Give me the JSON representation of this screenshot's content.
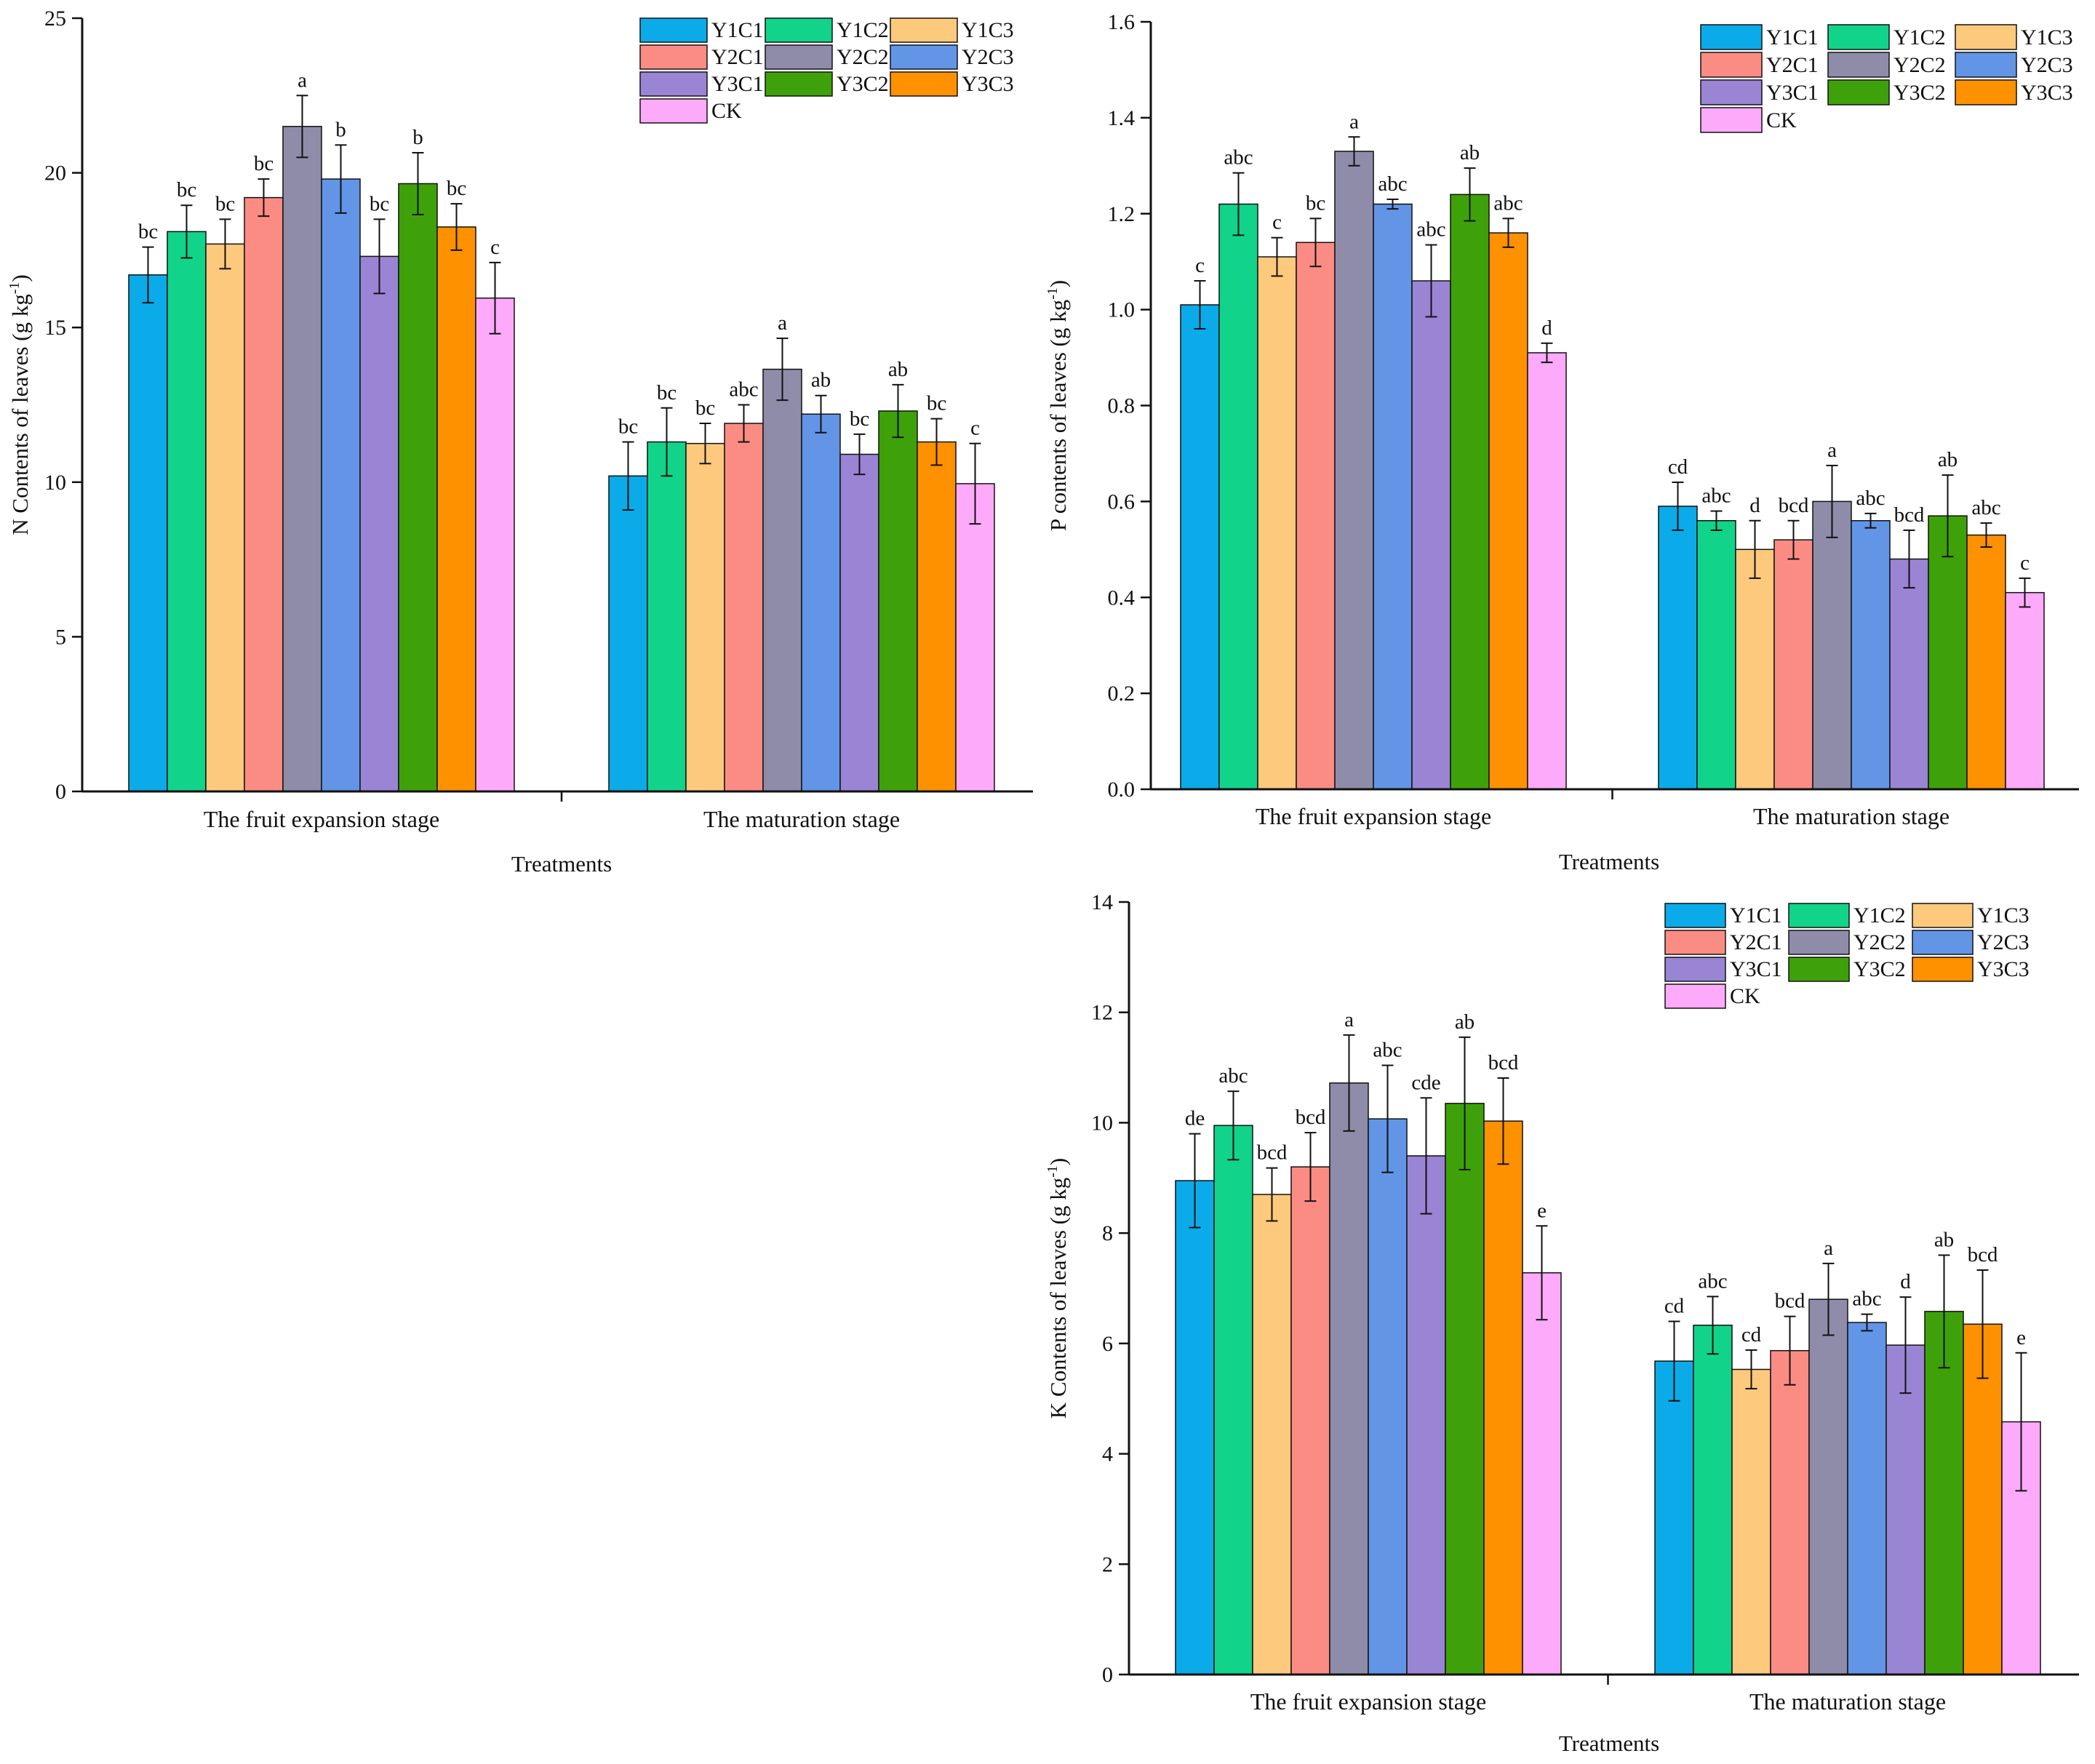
{
  "chart_data": [
    {
      "type": "bar",
      "id": "n",
      "ylabel_main": "N Contents of leaves (g kg",
      "ylabel_sup": "-1",
      "ylabel_tail": ")",
      "xlabel": "Treatments",
      "ylim": [
        0,
        25
      ],
      "yticks": [
        0,
        5,
        10,
        15,
        20,
        25
      ],
      "ytick_labels": [
        "0",
        "5",
        "10",
        "15",
        "20",
        "25"
      ],
      "categories": [
        "The fruit expansion stage",
        "The maturation stage"
      ],
      "series": [
        {
          "name": "Y1C1",
          "color": "#0aabe8",
          "values": [
            16.7,
            10.2
          ],
          "errors": [
            0.9,
            1.1
          ],
          "labels": [
            "bc",
            "bc"
          ]
        },
        {
          "name": "Y1C2",
          "color": "#12d38a",
          "values": [
            18.1,
            11.3
          ],
          "errors": [
            0.85,
            1.1
          ],
          "labels": [
            "bc",
            "bc"
          ]
        },
        {
          "name": "Y1C3",
          "color": "#fdc97c",
          "values": [
            17.7,
            11.25
          ],
          "errors": [
            0.8,
            0.65
          ],
          "labels": [
            "bc",
            "bc"
          ]
        },
        {
          "name": "Y2C1",
          "color": "#fb8c84",
          "values": [
            19.2,
            11.9
          ],
          "errors": [
            0.6,
            0.6
          ],
          "labels": [
            "bc",
            "abc"
          ]
        },
        {
          "name": "Y2C2",
          "color": "#8e8ca9",
          "values": [
            21.5,
            13.65
          ],
          "errors": [
            1.0,
            1.0
          ],
          "labels": [
            "a",
            "a"
          ]
        },
        {
          "name": "Y2C3",
          "color": "#6295e6",
          "values": [
            19.8,
            12.2
          ],
          "errors": [
            1.1,
            0.6
          ],
          "labels": [
            "b",
            "ab"
          ]
        },
        {
          "name": "Y3C1",
          "color": "#9a84d4",
          "values": [
            17.3,
            10.9
          ],
          "errors": [
            1.2,
            0.65
          ],
          "labels": [
            "bc",
            "bc"
          ]
        },
        {
          "name": "Y3C2",
          "color": "#3ea10a",
          "values": [
            19.65,
            12.3
          ],
          "errors": [
            1.0,
            0.85
          ],
          "labels": [
            "b",
            "ab"
          ]
        },
        {
          "name": "Y3C3",
          "color": "#fd9100",
          "values": [
            18.25,
            11.3
          ],
          "errors": [
            0.75,
            0.75
          ],
          "labels": [
            "bc",
            "bc"
          ]
        },
        {
          "name": "CK",
          "color": "#fdaafb",
          "values": [
            15.95,
            9.95
          ],
          "errors": [
            1.15,
            1.3
          ],
          "labels": [
            "c",
            "c"
          ]
        }
      ]
    },
    {
      "type": "bar",
      "id": "p",
      "ylabel_main": "P contents of leaves (g kg",
      "ylabel_sup": "-1",
      "ylabel_tail": ")",
      "xlabel": "Treatments",
      "ylim": [
        0,
        1.6
      ],
      "yticks": [
        0,
        0.2,
        0.4,
        0.6,
        0.8,
        1.0,
        1.2,
        1.4,
        1.6
      ],
      "ytick_labels": [
        "0.0",
        "0.2",
        "0.4",
        "0.6",
        "0.8",
        "1.0",
        "1.2",
        "1.4",
        "1.6"
      ],
      "categories": [
        "The fruit expansion stage",
        "The maturation stage"
      ],
      "series": [
        {
          "name": "Y1C1",
          "color": "#0aabe8",
          "values": [
            1.01,
            0.59
          ],
          "errors": [
            0.05,
            0.05
          ],
          "labels": [
            "c",
            "cd"
          ]
        },
        {
          "name": "Y1C2",
          "color": "#12d38a",
          "values": [
            1.22,
            0.56
          ],
          "errors": [
            0.065,
            0.02
          ],
          "labels": [
            "abc",
            "abc"
          ]
        },
        {
          "name": "Y1C3",
          "color": "#fdc97c",
          "values": [
            1.11,
            0.5
          ],
          "errors": [
            0.04,
            0.06
          ],
          "labels": [
            "c",
            "d"
          ]
        },
        {
          "name": "Y2C1",
          "color": "#fb8c84",
          "values": [
            1.14,
            0.52
          ],
          "errors": [
            0.05,
            0.04
          ],
          "labels": [
            "bc",
            "bcd"
          ]
        },
        {
          "name": "Y2C2",
          "color": "#8e8ca9",
          "values": [
            1.33,
            0.6
          ],
          "errors": [
            0.03,
            0.075
          ],
          "labels": [
            "a",
            "a"
          ]
        },
        {
          "name": "Y2C3",
          "color": "#6295e6",
          "values": [
            1.22,
            0.56
          ],
          "errors": [
            0.01,
            0.015
          ],
          "labels": [
            "abc",
            "abc"
          ]
        },
        {
          "name": "Y3C1",
          "color": "#9a84d4",
          "values": [
            1.06,
            0.48
          ],
          "errors": [
            0.075,
            0.06
          ],
          "labels": [
            "abc",
            "bcd"
          ]
        },
        {
          "name": "Y3C2",
          "color": "#3ea10a",
          "values": [
            1.24,
            0.57
          ],
          "errors": [
            0.055,
            0.085
          ],
          "labels": [
            "ab",
            "ab"
          ]
        },
        {
          "name": "Y3C3",
          "color": "#fd9100",
          "values": [
            1.16,
            0.53
          ],
          "errors": [
            0.03,
            0.025
          ],
          "labels": [
            "abc",
            "abc"
          ]
        },
        {
          "name": "CK",
          "color": "#fdaafb",
          "values": [
            0.91,
            0.41
          ],
          "errors": [
            0.02,
            0.03
          ],
          "labels": [
            "d",
            "c"
          ]
        }
      ]
    },
    {
      "type": "bar",
      "id": "k",
      "ylabel_main": "K Contents of leaves (g kg",
      "ylabel_sup": "-1",
      "ylabel_tail": ")",
      "xlabel": "Treatments",
      "ylim": [
        0,
        14
      ],
      "yticks": [
        0,
        2,
        4,
        6,
        8,
        10,
        12,
        14
      ],
      "ytick_labels": [
        "0",
        "2",
        "4",
        "6",
        "8",
        "10",
        "12",
        "14"
      ],
      "categories": [
        "The fruit expansion stage",
        "The maturation stage"
      ],
      "series": [
        {
          "name": "Y1C1",
          "color": "#0aabe8",
          "values": [
            8.95,
            5.68
          ],
          "errors": [
            0.85,
            0.72
          ],
          "labels": [
            "de",
            "cd"
          ]
        },
        {
          "name": "Y1C2",
          "color": "#12d38a",
          "values": [
            9.95,
            6.33
          ],
          "errors": [
            0.62,
            0.52
          ],
          "labels": [
            "abc",
            "abc"
          ]
        },
        {
          "name": "Y1C3",
          "color": "#fdc97c",
          "values": [
            8.7,
            5.53
          ],
          "errors": [
            0.48,
            0.35
          ],
          "labels": [
            "bcd",
            "cd"
          ]
        },
        {
          "name": "Y2C1",
          "color": "#fb8c84",
          "values": [
            9.2,
            5.87
          ],
          "errors": [
            0.62,
            0.62
          ],
          "labels": [
            "bcd",
            "bcd"
          ]
        },
        {
          "name": "Y2C2",
          "color": "#8e8ca9",
          "values": [
            10.72,
            6.8
          ],
          "errors": [
            0.87,
            0.65
          ],
          "labels": [
            "a",
            "a"
          ]
        },
        {
          "name": "Y2C3",
          "color": "#6295e6",
          "values": [
            10.07,
            6.38
          ],
          "errors": [
            0.97,
            0.15
          ],
          "labels": [
            "abc",
            "abc"
          ]
        },
        {
          "name": "Y3C1",
          "color": "#9a84d4",
          "values": [
            9.4,
            5.97
          ],
          "errors": [
            1.05,
            0.87
          ],
          "labels": [
            "cde",
            "d"
          ]
        },
        {
          "name": "Y3C2",
          "color": "#3ea10a",
          "values": [
            10.35,
            6.58
          ],
          "errors": [
            1.2,
            1.02
          ],
          "labels": [
            "ab",
            "ab"
          ]
        },
        {
          "name": "Y3C3",
          "color": "#fd9100",
          "values": [
            10.03,
            6.35
          ],
          "errors": [
            0.78,
            0.98
          ],
          "labels": [
            "bcd",
            "bcd"
          ]
        },
        {
          "name": "CK",
          "color": "#fdaafb",
          "values": [
            7.28,
            4.58
          ],
          "errors": [
            0.85,
            1.25
          ],
          "labels": [
            "e",
            "e"
          ]
        }
      ]
    }
  ]
}
